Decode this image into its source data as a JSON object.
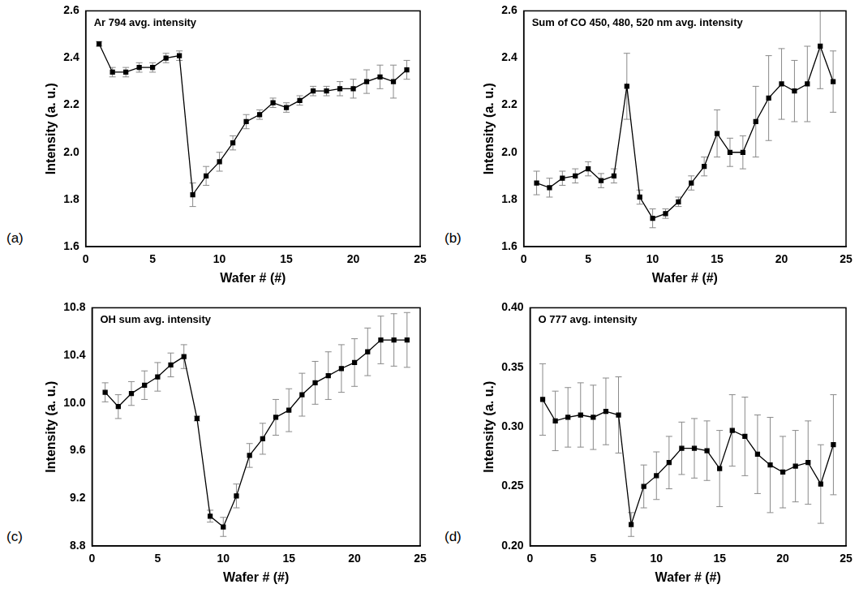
{
  "chart_data": [
    {
      "type": "line",
      "panel_label": "(a)",
      "title": "Ar 794 avg. intensity",
      "x_label": "Wafer # (#)",
      "y_label": "Intensity (a. u.)",
      "x": [
        1,
        2,
        3,
        4,
        5,
        6,
        7,
        8,
        9,
        10,
        11,
        12,
        13,
        14,
        15,
        16,
        17,
        18,
        19,
        20,
        21,
        22,
        23,
        24
      ],
      "values": [
        2.46,
        2.34,
        2.34,
        2.36,
        2.36,
        2.4,
        2.41,
        1.82,
        1.9,
        1.96,
        2.04,
        2.13,
        2.16,
        2.21,
        2.19,
        2.22,
        2.26,
        2.26,
        2.27,
        2.27,
        2.3,
        2.32,
        2.3,
        2.35
      ],
      "errors": [
        0.01,
        0.02,
        0.02,
        0.02,
        0.02,
        0.02,
        0.02,
        0.05,
        0.04,
        0.04,
        0.03,
        0.03,
        0.02,
        0.02,
        0.02,
        0.02,
        0.02,
        0.02,
        0.03,
        0.04,
        0.05,
        0.05,
        0.07,
        0.04
      ],
      "color": "#000000",
      "marker": "square",
      "grid": false,
      "xlim": [
        0,
        25
      ],
      "xticks": [
        0,
        5,
        10,
        15,
        20,
        25
      ],
      "ylim": [
        1.6,
        2.6
      ],
      "yticks": [
        1.6,
        1.8,
        {
          "value": 2,
          "label": "2.0"
        },
        2.2,
        2.4,
        2.6
      ]
    },
    {
      "type": "line",
      "panel_label": "(b)",
      "title": "Sum of CO 450, 480, 520 nm avg. intensity",
      "x_label": "Wafer # (#)",
      "y_label": "Intensity (a. u.)",
      "x": [
        1,
        2,
        3,
        4,
        5,
        6,
        7,
        8,
        9,
        10,
        11,
        12,
        13,
        14,
        15,
        16,
        17,
        18,
        19,
        20,
        21,
        22,
        23,
        24
      ],
      "values": [
        1.87,
        1.85,
        1.89,
        1.9,
        1.93,
        1.88,
        1.9,
        2.28,
        1.81,
        1.72,
        1.74,
        1.79,
        1.87,
        1.94,
        2.08,
        2.0,
        2.0,
        2.13,
        2.23,
        2.29,
        2.26,
        2.29,
        2.45,
        2.3
      ],
      "errors": [
        0.05,
        0.04,
        0.03,
        0.03,
        0.03,
        0.03,
        0.03,
        0.14,
        0.03,
        0.04,
        0.02,
        0.02,
        0.03,
        0.04,
        0.1,
        0.06,
        0.07,
        0.15,
        0.18,
        0.15,
        0.13,
        0.16,
        0.18,
        0.13
      ],
      "color": "#000000",
      "marker": "square",
      "grid": false,
      "xlim": [
        0,
        25
      ],
      "xticks": [
        0,
        5,
        10,
        15,
        20,
        25
      ],
      "ylim": [
        1.6,
        2.6
      ],
      "yticks": [
        1.6,
        1.8,
        {
          "value": 2,
          "label": "2.0"
        },
        2.2,
        2.4,
        2.6
      ]
    },
    {
      "type": "line",
      "panel_label": "(c)",
      "title": "OH sum avg. intensity",
      "x_label": "Wafer # (#)",
      "y_label": "Intensity (a. u.)",
      "x": [
        1,
        2,
        3,
        4,
        5,
        6,
        7,
        8,
        9,
        10,
        11,
        12,
        13,
        14,
        15,
        16,
        17,
        18,
        19,
        20,
        21,
        22,
        23,
        24
      ],
      "values": [
        10.09,
        9.97,
        10.08,
        10.15,
        10.22,
        10.32,
        10.39,
        9.87,
        9.05,
        8.96,
        9.22,
        9.56,
        9.7,
        9.88,
        9.94,
        10.07,
        10.17,
        10.23,
        10.29,
        10.34,
        10.43,
        10.53,
        10.53,
        10.53
      ],
      "errors": [
        0.08,
        0.1,
        0.1,
        0.12,
        0.12,
        0.1,
        0.1,
        0.02,
        0.05,
        0.08,
        0.1,
        0.1,
        0.13,
        0.15,
        0.18,
        0.18,
        0.18,
        0.2,
        0.2,
        0.2,
        0.2,
        0.2,
        0.22,
        0.23
      ],
      "color": "#000000",
      "marker": "square",
      "grid": false,
      "xlim": [
        0,
        25
      ],
      "xticks": [
        0,
        5,
        10,
        15,
        20,
        25
      ],
      "ylim": [
        8.8,
        10.8
      ],
      "yticks": [
        8.8,
        9.2,
        9.6,
        {
          "value": 10,
          "label": "10.0"
        },
        10.4,
        10.8
      ]
    },
    {
      "type": "line",
      "panel_label": "(d)",
      "title": "O 777 avg. intensity",
      "x_label": "Wafer # (#)",
      "y_label": "Intensity (a. u.)",
      "x": [
        1,
        2,
        3,
        4,
        5,
        6,
        7,
        8,
        9,
        10,
        11,
        12,
        13,
        14,
        15,
        16,
        17,
        18,
        19,
        20,
        21,
        22,
        23,
        24
      ],
      "values": [
        0.323,
        0.305,
        0.308,
        0.31,
        0.308,
        0.313,
        0.31,
        0.218,
        0.25,
        0.259,
        0.27,
        0.282,
        0.282,
        0.28,
        0.265,
        0.297,
        0.292,
        0.277,
        0.268,
        0.262,
        0.267,
        0.27,
        0.252,
        0.285
      ],
      "errors": [
        0.03,
        0.025,
        0.025,
        0.027,
        0.027,
        0.028,
        0.032,
        0.01,
        0.018,
        0.02,
        0.022,
        0.022,
        0.025,
        0.025,
        0.032,
        0.03,
        0.033,
        0.033,
        0.04,
        0.03,
        0.03,
        0.035,
        0.033,
        0.042
      ],
      "color": "#000000",
      "marker": "square",
      "grid": false,
      "xlim": [
        0,
        25
      ],
      "xticks": [
        0,
        5,
        10,
        15,
        20,
        25
      ],
      "ylim": [
        0.2,
        0.4
      ],
      "yticks": [
        {
          "value": 0.2,
          "label": "0.20"
        },
        0.25,
        {
          "value": 0.3,
          "label": "0.30"
        },
        0.35,
        {
          "value": 0.4,
          "label": "0.40"
        }
      ]
    }
  ]
}
